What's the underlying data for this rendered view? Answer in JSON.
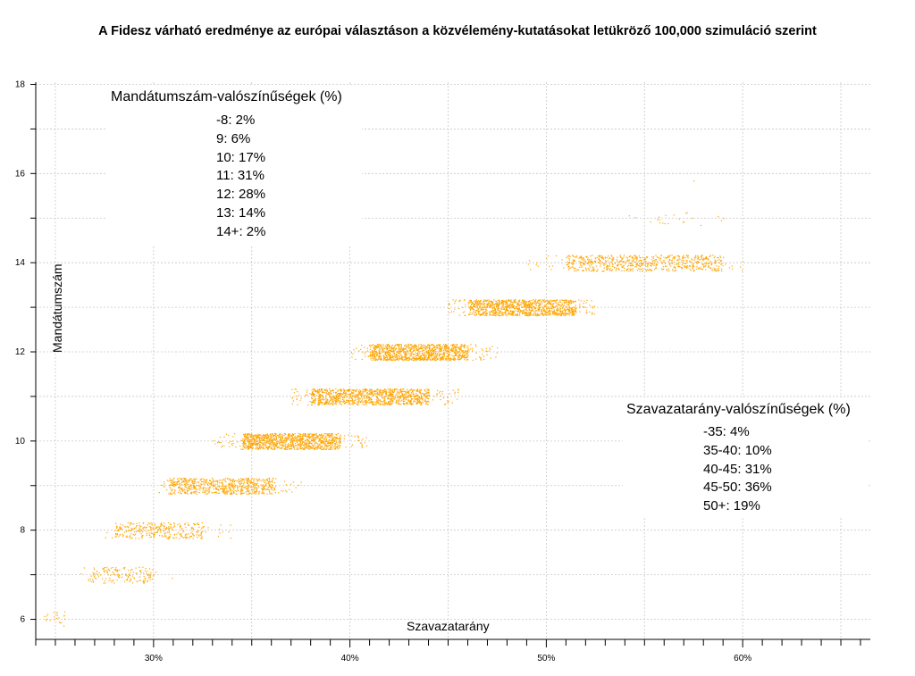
{
  "chart_data": {
    "type": "scatter",
    "title": "A Fidesz várható eredménye az európai választáson a közvélemény-kutatásokat letükröző 100,000 szimuláció szerint",
    "xlabel": "Szavazatarány",
    "ylabel": "Mandátumszám",
    "xlim": [
      0.24,
      0.665
    ],
    "ylim": [
      5.55,
      18.05
    ],
    "x_ticks": [
      {
        "value": 0.3,
        "label": "30%"
      },
      {
        "value": 0.4,
        "label": "40%"
      },
      {
        "value": 0.5,
        "label": "50%"
      },
      {
        "value": 0.6,
        "label": "60%"
      }
    ],
    "y_ticks": [
      {
        "value": 6,
        "label": "6"
      },
      {
        "value": 8,
        "label": "8"
      },
      {
        "value": 10,
        "label": "10"
      },
      {
        "value": 12,
        "label": "12"
      },
      {
        "value": 14,
        "label": "14"
      },
      {
        "value": 16,
        "label": "16"
      },
      {
        "value": 18,
        "label": "18"
      }
    ],
    "grid": true,
    "point_color": "#FFA500",
    "clusters": [
      {
        "seats": 6,
        "x_min": 0.243,
        "x_max": 0.26,
        "core_min": 0.245,
        "core_max": 0.255,
        "density": "sparse"
      },
      {
        "seats": 7,
        "x_min": 0.262,
        "x_max": 0.31,
        "core_min": 0.268,
        "core_max": 0.3,
        "density": "low"
      },
      {
        "seats": 8,
        "x_min": 0.273,
        "x_max": 0.34,
        "core_min": 0.28,
        "core_max": 0.325,
        "density": "medium"
      },
      {
        "seats": 9,
        "x_min": 0.302,
        "x_max": 0.375,
        "core_min": 0.308,
        "core_max": 0.362,
        "density": "high"
      },
      {
        "seats": 10,
        "x_min": 0.33,
        "x_max": 0.41,
        "core_min": 0.345,
        "core_max": 0.395,
        "density": "very-high"
      },
      {
        "seats": 11,
        "x_min": 0.37,
        "x_max": 0.455,
        "core_min": 0.38,
        "core_max": 0.44,
        "density": "very-high"
      },
      {
        "seats": 12,
        "x_min": 0.4,
        "x_max": 0.475,
        "core_min": 0.41,
        "core_max": 0.46,
        "density": "very-high"
      },
      {
        "seats": 13,
        "x_min": 0.45,
        "x_max": 0.525,
        "core_min": 0.46,
        "core_max": 0.515,
        "density": "very-high"
      },
      {
        "seats": 14,
        "x_min": 0.49,
        "x_max": 0.6,
        "core_min": 0.51,
        "core_max": 0.59,
        "density": "high"
      },
      {
        "seats": 15,
        "x_min": 0.53,
        "x_max": 0.6,
        "core_min": 0.545,
        "core_max": 0.595,
        "density": "sparse"
      },
      {
        "seats": 16,
        "x_min": 0.575,
        "x_max": 0.576,
        "core_min": 0.575,
        "core_max": 0.576,
        "density": "single"
      }
    ],
    "legend_seats": {
      "title": "Mandátumszám-valószínűségek (%)",
      "items": [
        "-8: 2%",
        "9: 6%",
        "10: 17%",
        "11: 31%",
        "12: 28%",
        "13: 14%",
        "14+: 2%"
      ]
    },
    "legend_votes": {
      "title": "Szavazatarány-valószínűségek (%)",
      "items": [
        "-35: 4%",
        "35-40: 10%",
        "40-45: 31%",
        "45-50: 36%",
        "50+: 19%"
      ]
    }
  }
}
